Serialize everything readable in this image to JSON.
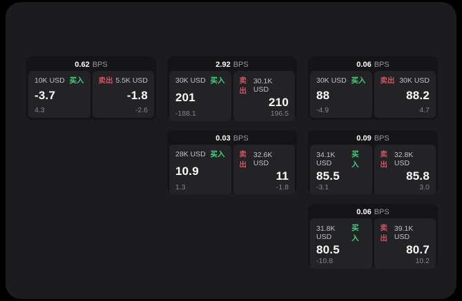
{
  "page": {
    "bps_unit": "BPS",
    "buy_label": "买入",
    "sell_label": "卖出"
  },
  "colors": {
    "background": "#000000",
    "frame": "#1c1c1e",
    "card": "#151517",
    "panel": "#232326",
    "buy_green": "#3fd57c",
    "sell_red": "#cf5465"
  },
  "cards": [
    {
      "bps": "0.62",
      "buy": {
        "amount": "10K USD",
        "value": "-3.7",
        "delta": "4.3"
      },
      "sell": {
        "amount": "5.5K USD",
        "value": "-1.8",
        "delta": "-2.6"
      }
    },
    {
      "bps": "2.92",
      "buy": {
        "amount": "30K USD",
        "value": "201",
        "delta": "-188.1"
      },
      "sell": {
        "amount": "30.1K USD",
        "value": "210",
        "delta": "196.5"
      }
    },
    {
      "bps": "0.06",
      "buy": {
        "amount": "30K USD",
        "value": "88",
        "delta": "-4.9"
      },
      "sell": {
        "amount": "30K USD",
        "value": "88.2",
        "delta": "4.7"
      }
    },
    {
      "bps": "0.03",
      "buy": {
        "amount": "28K USD",
        "value": "10.9",
        "delta": "1.3"
      },
      "sell": {
        "amount": "32.6K USD",
        "value": "11",
        "delta": "-1.8"
      }
    },
    {
      "bps": "0.09",
      "buy": {
        "amount": "34.1K USD",
        "value": "85.5",
        "delta": "-3.1"
      },
      "sell": {
        "amount": "32.8K USD",
        "value": "85.8",
        "delta": "3.0"
      }
    },
    {
      "bps": "0.06",
      "buy": {
        "amount": "31.8K USD",
        "value": "80.5",
        "delta": "-10.8"
      },
      "sell": {
        "amount": "39.1K USD",
        "value": "80.7",
        "delta": "10.2"
      }
    }
  ]
}
